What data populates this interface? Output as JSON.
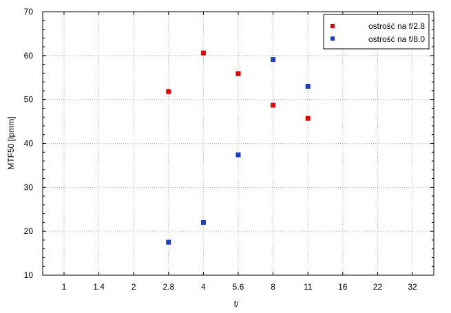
{
  "chart_data": {
    "type": "scatter",
    "xlabel": "f/",
    "ylabel": "MTF50 [lpmm]",
    "categories": [
      "1",
      "1.4",
      "2",
      "2.8",
      "4",
      "5.6",
      "8",
      "11",
      "16",
      "22",
      "32"
    ],
    "ylim": [
      10,
      70
    ],
    "yticks": [
      10,
      20,
      30,
      40,
      50,
      60,
      70
    ],
    "grid": true,
    "legend_position": "top-right",
    "series": [
      {
        "name": "ostrość na f/2.8",
        "color": "#e60000",
        "points": [
          {
            "x": "2.8",
            "y": 51.8
          },
          {
            "x": "4",
            "y": 60.6
          },
          {
            "x": "5.6",
            "y": 55.9
          },
          {
            "x": "8",
            "y": 48.7
          },
          {
            "x": "11",
            "y": 45.7
          }
        ]
      },
      {
        "name": "ostrość na f/8.0",
        "color": "#1a3fcc",
        "points": [
          {
            "x": "2.8",
            "y": 17.5
          },
          {
            "x": "4",
            "y": 22.0
          },
          {
            "x": "5.6",
            "y": 37.4
          },
          {
            "x": "8",
            "y": 59.1
          },
          {
            "x": "11",
            "y": 53.0
          }
        ]
      }
    ]
  }
}
